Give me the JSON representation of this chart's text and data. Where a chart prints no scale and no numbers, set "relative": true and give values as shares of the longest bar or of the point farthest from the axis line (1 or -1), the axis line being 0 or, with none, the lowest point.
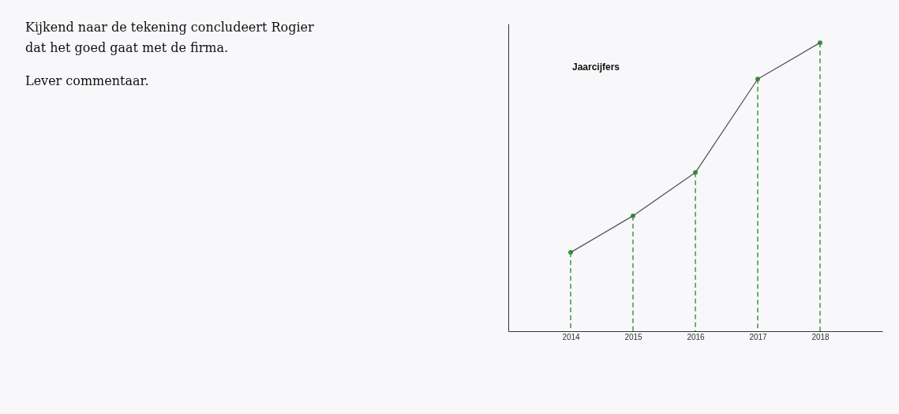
{
  "chart_data": {
    "type": "line",
    "title": "Jaarcijfers",
    "relative": true,
    "categories": [
      "2014",
      "2015",
      "2016",
      "2017",
      "2018"
    ],
    "series": [
      {
        "type": "lollipop",
        "color": "#3a9a3a",
        "line_style": "dashed",
        "values": [
          0.273,
          0.4,
          0.55,
          0.874,
          1
        ]
      },
      {
        "color": "#555555",
        "values": [
          0.273,
          0.4,
          0.55,
          0.874,
          1
        ]
      }
    ],
    "annotations": [
      "Kijkend naar de tekening concludeert Rogier dat het goed gaat met de firma.",
      "Lever commentaar."
    ]
  }
}
